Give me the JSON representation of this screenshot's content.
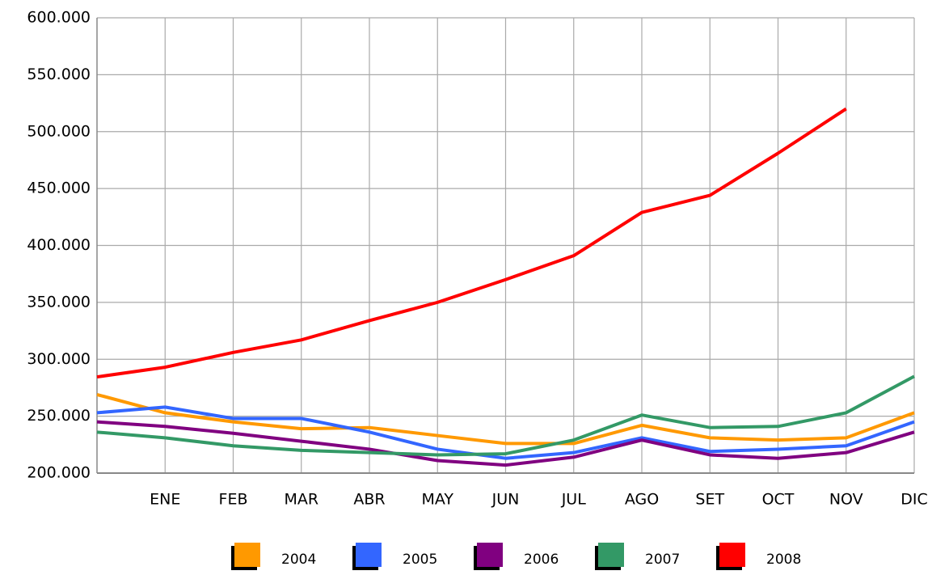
{
  "chart_data": {
    "type": "line",
    "categories": [
      null,
      "ENE",
      "FEB",
      "MAR",
      "ABR",
      "MAY",
      "JUN",
      "JUL",
      "AGO",
      "SET",
      "OCT",
      "NOV",
      "DIC"
    ],
    "series": [
      {
        "name": "2004",
        "color": "#ff9900",
        "values": [
          269000,
          253000,
          245000,
          239000,
          240000,
          233000,
          226000,
          226000,
          242000,
          231000,
          229000,
          231000,
          253000
        ]
      },
      {
        "name": "2005",
        "color": "#3366ff",
        "values": [
          253000,
          258000,
          248000,
          248000,
          236000,
          221000,
          213000,
          218000,
          231000,
          219000,
          221000,
          224000,
          245000
        ]
      },
      {
        "name": "2006",
        "color": "#800080",
        "values": [
          245000,
          241000,
          235000,
          228000,
          221000,
          211000,
          207000,
          214000,
          229000,
          216000,
          213000,
          218000,
          236000
        ]
      },
      {
        "name": "2007",
        "color": "#339966",
        "values": [
          236000,
          231000,
          224000,
          220000,
          218000,
          216000,
          217000,
          229000,
          251000,
          240000,
          241000,
          253000,
          285000
        ]
      },
      {
        "name": "2008",
        "color": "#ff0000",
        "values": [
          284500,
          293000,
          306000,
          317000,
          334000,
          350000,
          370000,
          391000,
          429000,
          444000,
          481000,
          520000,
          null
        ]
      }
    ],
    "ylim": [
      200000,
      600000
    ],
    "yticks": [
      {
        "value": 200000,
        "label": "200.000"
      },
      {
        "value": 250000,
        "label": "250.000"
      },
      {
        "value": 300000,
        "label": "300.000"
      },
      {
        "value": 350000,
        "label": "350.000"
      },
      {
        "value": 400000,
        "label": "400.000"
      },
      {
        "value": 450000,
        "label": "450.000"
      },
      {
        "value": 500000,
        "label": "500.000"
      },
      {
        "value": 550000,
        "label": "550.000"
      },
      {
        "value": 600000,
        "label": "600.000"
      }
    ],
    "grid": true,
    "legend": "bottom"
  }
}
